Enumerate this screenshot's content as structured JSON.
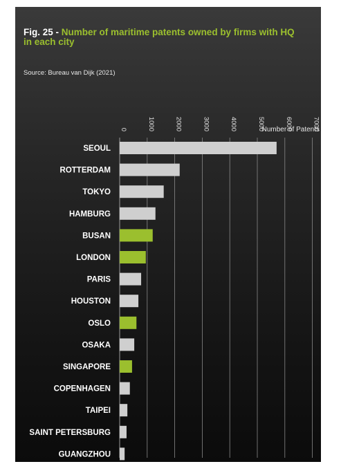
{
  "figure": {
    "label": "Fig. 25 -",
    "title": "Number of maritime patents owned by firms with HQ in each city",
    "source": "Source: Bureau van Dijk (2021)"
  },
  "colors": {
    "background_top": "#3a3a3a",
    "background_bottom": "#0b0b0b",
    "bar_default": "#cfcfcf",
    "bar_highlight": "#9bbf2e",
    "title_accent": "#9bbf2e"
  },
  "chart_data": {
    "type": "bar",
    "orientation": "horizontal",
    "title": "Number of maritime patents owned by firms with HQ in each city",
    "xlabel": "Number of Patents",
    "ylabel": "",
    "xlim": [
      0,
      7000
    ],
    "xticks": [
      0,
      1000,
      2000,
      3000,
      4000,
      5000,
      6000,
      7000
    ],
    "grid": true,
    "highlight_color_meaning": "",
    "categories": [
      "SEOUL",
      "ROTTERDAM",
      "TOKYO",
      "HAMBURG",
      "BUSAN",
      "LONDON",
      "PARIS",
      "HOUSTON",
      "OSLO",
      "OSAKA",
      "SINGAPORE",
      "COPENHAGEN",
      "TAIPEI",
      "SAINT PETERSBURG",
      "GUANGZHOU"
    ],
    "values": [
      5700,
      2180,
      1600,
      1300,
      1200,
      950,
      780,
      680,
      610,
      530,
      450,
      370,
      280,
      250,
      180
    ],
    "highlighted": [
      false,
      false,
      false,
      false,
      true,
      true,
      false,
      false,
      true,
      false,
      true,
      false,
      false,
      false,
      false
    ]
  }
}
